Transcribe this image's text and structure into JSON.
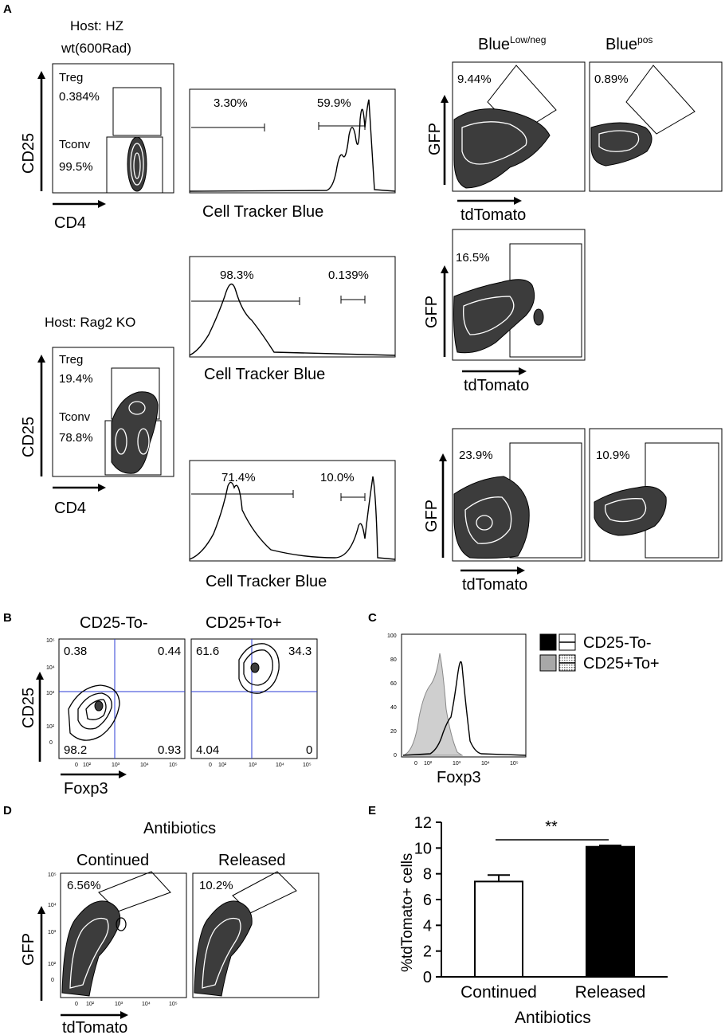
{
  "panels": {
    "A": "A",
    "B": "B",
    "C": "C",
    "D": "D",
    "E": "E"
  },
  "panelA": {
    "host_hz_line1": "Host: HZ",
    "host_hz_line2": "wt(600Rad)",
    "host_rag": "Host: Rag2 KO",
    "axis_cd25": "CD25",
    "axis_cd4": "CD4",
    "axis_ctb": "Cell Tracker Blue",
    "axis_gfp": "GFP",
    "axis_tdtomato": "tdTomato",
    "blue_low_base": "Blue",
    "blue_low_sup": "Low/neg",
    "blue_pos_base": "Blue",
    "blue_pos_sup": "pos",
    "hz": {
      "treg_label": "Treg",
      "treg_pct": "0.384%",
      "tconv_label": "Tconv",
      "tconv_pct": "99.5%",
      "ctb_left": "3.30%",
      "ctb_right": "59.9%",
      "gfp_low": "9.44%",
      "gfp_pos": "0.89%"
    },
    "rag_middle": {
      "ctb_left": "98.3%",
      "ctb_right": "0.139%",
      "gfp": "16.5%"
    },
    "rag": {
      "treg_label": "Treg",
      "treg_pct": "19.4%",
      "tconv_label": "Tconv",
      "tconv_pct": "78.8%",
      "ctb_left": "71.4%",
      "ctb_right": "10.0%",
      "gfp_left": "23.9%",
      "gfp_right": "10.9%"
    }
  },
  "panelB": {
    "title_left": "CD25-To-",
    "title_right": "CD25+To+",
    "axis_y": "CD25",
    "axis_x": "Foxp3",
    "left_quadrants": {
      "ul": "0.38",
      "ur": "0.44",
      "ll": "98.2",
      "lr": "0.93"
    },
    "right_quadrants": {
      "ul": "61.6",
      "ur": "34.3",
      "ll": "4.04",
      "lr": "0"
    },
    "y_ticks": [
      "10⁵",
      "10⁴",
      "10³",
      "10²",
      "0"
    ],
    "x_ticks": [
      "0",
      "10²",
      "10³",
      "10⁴",
      "10⁵"
    ]
  },
  "panelC": {
    "axis_x": "Foxp3",
    "legend": [
      "CD25-To-",
      "CD25+To+"
    ],
    "y_ticks": [
      "100",
      "80",
      "60",
      "40",
      "20",
      "0"
    ],
    "x_ticks": [
      "0",
      "10²",
      "10³",
      "10⁴",
      "10⁵"
    ]
  },
  "panelD": {
    "title": "Antibiotics",
    "sub_left": "Continued",
    "sub_right": "Released",
    "pct_left": "6.56%",
    "pct_right": "10.2%",
    "axis_y": "GFP",
    "axis_x": "tdTomato",
    "y_ticks": [
      "10⁵",
      "10⁴",
      "10³",
      "10²",
      "0"
    ],
    "x_ticks": [
      "0",
      "10²",
      "10³",
      "10⁴",
      "10⁵"
    ]
  },
  "chart_data": {
    "type": "bar",
    "categories": [
      "Continued",
      "Released"
    ],
    "values": [
      7.4,
      10.1
    ],
    "errors": [
      0.5,
      0.1
    ],
    "bar_colors": [
      "#ffffff",
      "#000000"
    ],
    "xlabel": "Antibiotics",
    "ylabel": "%tdTomato+ cells",
    "ylim": [
      0,
      12
    ],
    "yticks": [
      "0",
      "2",
      "4",
      "6",
      "8",
      "10",
      "12"
    ],
    "significance": "**"
  }
}
